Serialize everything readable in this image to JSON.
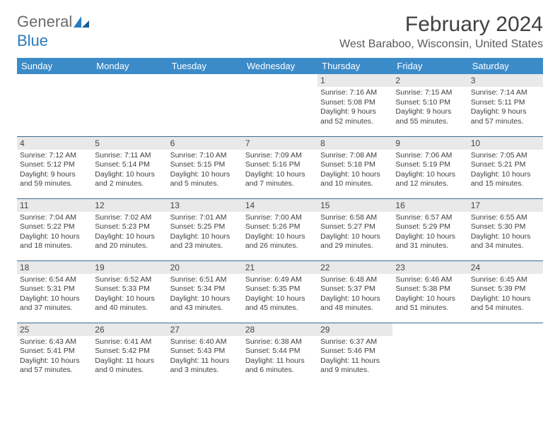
{
  "logo": {
    "word1": "General",
    "word2": "Blue"
  },
  "title": "February 2024",
  "location": "West Baraboo, Wisconsin, United States",
  "colors": {
    "header_bg": "#3b8bc9",
    "header_text": "#ffffff",
    "daynum_bg": "#e9e9e9",
    "border": "#3b6a8f",
    "text": "#404040",
    "logo_gray": "#6b6b6b",
    "logo_blue": "#2a7bbf"
  },
  "weekdays": [
    "Sunday",
    "Monday",
    "Tuesday",
    "Wednesday",
    "Thursday",
    "Friday",
    "Saturday"
  ],
  "weeks": [
    [
      null,
      null,
      null,
      null,
      {
        "n": "1",
        "sr": "Sunrise: 7:16 AM",
        "ss": "Sunset: 5:08 PM",
        "d1": "Daylight: 9 hours",
        "d2": "and 52 minutes."
      },
      {
        "n": "2",
        "sr": "Sunrise: 7:15 AM",
        "ss": "Sunset: 5:10 PM",
        "d1": "Daylight: 9 hours",
        "d2": "and 55 minutes."
      },
      {
        "n": "3",
        "sr": "Sunrise: 7:14 AM",
        "ss": "Sunset: 5:11 PM",
        "d1": "Daylight: 9 hours",
        "d2": "and 57 minutes."
      }
    ],
    [
      {
        "n": "4",
        "sr": "Sunrise: 7:12 AM",
        "ss": "Sunset: 5:12 PM",
        "d1": "Daylight: 9 hours",
        "d2": "and 59 minutes."
      },
      {
        "n": "5",
        "sr": "Sunrise: 7:11 AM",
        "ss": "Sunset: 5:14 PM",
        "d1": "Daylight: 10 hours",
        "d2": "and 2 minutes."
      },
      {
        "n": "6",
        "sr": "Sunrise: 7:10 AM",
        "ss": "Sunset: 5:15 PM",
        "d1": "Daylight: 10 hours",
        "d2": "and 5 minutes."
      },
      {
        "n": "7",
        "sr": "Sunrise: 7:09 AM",
        "ss": "Sunset: 5:16 PM",
        "d1": "Daylight: 10 hours",
        "d2": "and 7 minutes."
      },
      {
        "n": "8",
        "sr": "Sunrise: 7:08 AM",
        "ss": "Sunset: 5:18 PM",
        "d1": "Daylight: 10 hours",
        "d2": "and 10 minutes."
      },
      {
        "n": "9",
        "sr": "Sunrise: 7:06 AM",
        "ss": "Sunset: 5:19 PM",
        "d1": "Daylight: 10 hours",
        "d2": "and 12 minutes."
      },
      {
        "n": "10",
        "sr": "Sunrise: 7:05 AM",
        "ss": "Sunset: 5:21 PM",
        "d1": "Daylight: 10 hours",
        "d2": "and 15 minutes."
      }
    ],
    [
      {
        "n": "11",
        "sr": "Sunrise: 7:04 AM",
        "ss": "Sunset: 5:22 PM",
        "d1": "Daylight: 10 hours",
        "d2": "and 18 minutes."
      },
      {
        "n": "12",
        "sr": "Sunrise: 7:02 AM",
        "ss": "Sunset: 5:23 PM",
        "d1": "Daylight: 10 hours",
        "d2": "and 20 minutes."
      },
      {
        "n": "13",
        "sr": "Sunrise: 7:01 AM",
        "ss": "Sunset: 5:25 PM",
        "d1": "Daylight: 10 hours",
        "d2": "and 23 minutes."
      },
      {
        "n": "14",
        "sr": "Sunrise: 7:00 AM",
        "ss": "Sunset: 5:26 PM",
        "d1": "Daylight: 10 hours",
        "d2": "and 26 minutes."
      },
      {
        "n": "15",
        "sr": "Sunrise: 6:58 AM",
        "ss": "Sunset: 5:27 PM",
        "d1": "Daylight: 10 hours",
        "d2": "and 29 minutes."
      },
      {
        "n": "16",
        "sr": "Sunrise: 6:57 AM",
        "ss": "Sunset: 5:29 PM",
        "d1": "Daylight: 10 hours",
        "d2": "and 31 minutes."
      },
      {
        "n": "17",
        "sr": "Sunrise: 6:55 AM",
        "ss": "Sunset: 5:30 PM",
        "d1": "Daylight: 10 hours",
        "d2": "and 34 minutes."
      }
    ],
    [
      {
        "n": "18",
        "sr": "Sunrise: 6:54 AM",
        "ss": "Sunset: 5:31 PM",
        "d1": "Daylight: 10 hours",
        "d2": "and 37 minutes."
      },
      {
        "n": "19",
        "sr": "Sunrise: 6:52 AM",
        "ss": "Sunset: 5:33 PM",
        "d1": "Daylight: 10 hours",
        "d2": "and 40 minutes."
      },
      {
        "n": "20",
        "sr": "Sunrise: 6:51 AM",
        "ss": "Sunset: 5:34 PM",
        "d1": "Daylight: 10 hours",
        "d2": "and 43 minutes."
      },
      {
        "n": "21",
        "sr": "Sunrise: 6:49 AM",
        "ss": "Sunset: 5:35 PM",
        "d1": "Daylight: 10 hours",
        "d2": "and 45 minutes."
      },
      {
        "n": "22",
        "sr": "Sunrise: 6:48 AM",
        "ss": "Sunset: 5:37 PM",
        "d1": "Daylight: 10 hours",
        "d2": "and 48 minutes."
      },
      {
        "n": "23",
        "sr": "Sunrise: 6:46 AM",
        "ss": "Sunset: 5:38 PM",
        "d1": "Daylight: 10 hours",
        "d2": "and 51 minutes."
      },
      {
        "n": "24",
        "sr": "Sunrise: 6:45 AM",
        "ss": "Sunset: 5:39 PM",
        "d1": "Daylight: 10 hours",
        "d2": "and 54 minutes."
      }
    ],
    [
      {
        "n": "25",
        "sr": "Sunrise: 6:43 AM",
        "ss": "Sunset: 5:41 PM",
        "d1": "Daylight: 10 hours",
        "d2": "and 57 minutes."
      },
      {
        "n": "26",
        "sr": "Sunrise: 6:41 AM",
        "ss": "Sunset: 5:42 PM",
        "d1": "Daylight: 11 hours",
        "d2": "and 0 minutes."
      },
      {
        "n": "27",
        "sr": "Sunrise: 6:40 AM",
        "ss": "Sunset: 5:43 PM",
        "d1": "Daylight: 11 hours",
        "d2": "and 3 minutes."
      },
      {
        "n": "28",
        "sr": "Sunrise: 6:38 AM",
        "ss": "Sunset: 5:44 PM",
        "d1": "Daylight: 11 hours",
        "d2": "and 6 minutes."
      },
      {
        "n": "29",
        "sr": "Sunrise: 6:37 AM",
        "ss": "Sunset: 5:46 PM",
        "d1": "Daylight: 11 hours",
        "d2": "and 9 minutes."
      },
      null,
      null
    ]
  ]
}
